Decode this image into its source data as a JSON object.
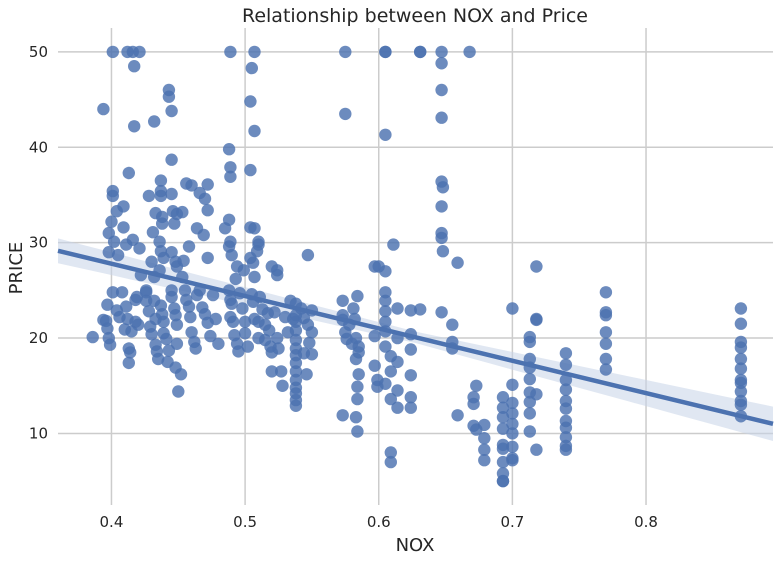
{
  "chart_data": {
    "type": "scatter",
    "title": "Relationship between NOX and Price",
    "xlabel": "NOX",
    "ylabel": "PRICE",
    "xlim": [
      0.36,
      0.895
    ],
    "ylim": [
      2.5,
      52.5
    ],
    "x_ticks": [
      "0.4",
      "0.5",
      "0.6",
      "0.7",
      "0.8"
    ],
    "y_ticks": [
      "10",
      "20",
      "30",
      "40",
      "50"
    ],
    "grid": true,
    "colors": {
      "points": "#4c72b0",
      "line": "#4c72b0",
      "band": "#c6d3e8",
      "grid": "#cccccc"
    },
    "regression": {
      "slope": -33.9,
      "intercept": 41.35,
      "x_range": [
        0.36,
        0.895
      ],
      "ci_half_width_start": 1.3,
      "ci_half_width_mid": 0.6,
      "ci_half_width_end": 1.8
    },
    "points": [
      [
        0.394,
        44.0
      ],
      [
        0.401,
        50.0
      ],
      [
        0.412,
        50.0
      ],
      [
        0.416,
        50.0
      ],
      [
        0.421,
        50.0
      ],
      [
        0.417,
        48.5
      ],
      [
        0.417,
        42.2
      ],
      [
        0.432,
        42.7
      ],
      [
        0.443,
        46.0
      ],
      [
        0.443,
        45.3
      ],
      [
        0.445,
        43.8
      ],
      [
        0.445,
        38.7
      ],
      [
        0.489,
        50.0
      ],
      [
        0.507,
        50.0
      ],
      [
        0.505,
        48.3
      ],
      [
        0.504,
        44.8
      ],
      [
        0.507,
        41.7
      ],
      [
        0.488,
        39.8
      ],
      [
        0.489,
        37.9
      ],
      [
        0.489,
        36.9
      ],
      [
        0.504,
        37.6
      ],
      [
        0.575,
        50.0
      ],
      [
        0.605,
        50.0
      ],
      [
        0.605,
        50.0
      ],
      [
        0.631,
        50.0
      ],
      [
        0.631,
        50.0
      ],
      [
        0.647,
        50.0
      ],
      [
        0.668,
        50.0
      ],
      [
        0.647,
        48.8
      ],
      [
        0.575,
        43.5
      ],
      [
        0.647,
        46.0
      ],
      [
        0.647,
        43.1
      ],
      [
        0.605,
        41.3
      ],
      [
        0.413,
        37.3
      ],
      [
        0.401,
        35.4
      ],
      [
        0.401,
        34.9
      ],
      [
        0.404,
        33.3
      ],
      [
        0.4,
        32.2
      ],
      [
        0.409,
        33.8
      ],
      [
        0.409,
        31.6
      ],
      [
        0.398,
        31.0
      ],
      [
        0.402,
        30.1
      ],
      [
        0.411,
        29.8
      ],
      [
        0.398,
        29.0
      ],
      [
        0.405,
        28.7
      ],
      [
        0.428,
        34.9
      ],
      [
        0.437,
        36.5
      ],
      [
        0.437,
        35.4
      ],
      [
        0.437,
        34.9
      ],
      [
        0.433,
        33.1
      ],
      [
        0.438,
        32.7
      ],
      [
        0.438,
        32.0
      ],
      [
        0.445,
        35.1
      ],
      [
        0.446,
        33.3
      ],
      [
        0.447,
        32.0
      ],
      [
        0.449,
        33.0
      ],
      [
        0.453,
        33.2
      ],
      [
        0.456,
        36.2
      ],
      [
        0.46,
        36.0
      ],
      [
        0.466,
        35.2
      ],
      [
        0.47,
        34.6
      ],
      [
        0.472,
        36.1
      ],
      [
        0.472,
        33.4
      ],
      [
        0.458,
        29.6
      ],
      [
        0.469,
        30.8
      ],
      [
        0.464,
        31.5
      ],
      [
        0.431,
        31.1
      ],
      [
        0.436,
        30.1
      ],
      [
        0.437,
        29.1
      ],
      [
        0.439,
        28.4
      ],
      [
        0.445,
        29.0
      ],
      [
        0.448,
        28.0
      ],
      [
        0.454,
        28.1
      ],
      [
        0.449,
        27.5
      ],
      [
        0.43,
        28.0
      ],
      [
        0.432,
        26.4
      ],
      [
        0.422,
        26.6
      ],
      [
        0.416,
        30.3
      ],
      [
        0.421,
        29.4
      ],
      [
        0.426,
        25.0
      ],
      [
        0.436,
        27.1
      ],
      [
        0.472,
        28.4
      ],
      [
        0.485,
        31.5
      ],
      [
        0.488,
        32.4
      ],
      [
        0.489,
        30.1
      ],
      [
        0.488,
        29.6
      ],
      [
        0.49,
        28.7
      ],
      [
        0.494,
        27.5
      ],
      [
        0.493,
        26.2
      ],
      [
        0.499,
        27.1
      ],
      [
        0.504,
        31.6
      ],
      [
        0.507,
        31.5
      ],
      [
        0.51,
        30.1
      ],
      [
        0.51,
        29.8
      ],
      [
        0.509,
        29.1
      ],
      [
        0.504,
        28.4
      ],
      [
        0.506,
        27.9
      ],
      [
        0.507,
        26.4
      ],
      [
        0.52,
        27.5
      ],
      [
        0.524,
        26.6
      ],
      [
        0.524,
        27.1
      ],
      [
        0.547,
        28.7
      ],
      [
        0.611,
        29.8
      ],
      [
        0.6,
        27.5
      ],
      [
        0.605,
        27.0
      ],
      [
        0.659,
        27.9
      ],
      [
        0.647,
        31.0
      ],
      [
        0.647,
        30.5
      ],
      [
        0.648,
        29.1
      ],
      [
        0.647,
        33.8
      ],
      [
        0.647,
        36.4
      ],
      [
        0.648,
        35.8
      ],
      [
        0.394,
        21.9
      ],
      [
        0.396,
        21.8
      ],
      [
        0.397,
        21.0
      ],
      [
        0.398,
        20.0
      ],
      [
        0.386,
        20.1
      ],
      [
        0.399,
        19.3
      ],
      [
        0.397,
        23.5
      ],
      [
        0.401,
        24.8
      ],
      [
        0.404,
        22.9
      ],
      [
        0.406,
        22.2
      ],
      [
        0.408,
        24.8
      ],
      [
        0.411,
        23.3
      ],
      [
        0.41,
        20.9
      ],
      [
        0.412,
        22.0
      ],
      [
        0.413,
        18.9
      ],
      [
        0.414,
        18.5
      ],
      [
        0.413,
        17.4
      ],
      [
        0.415,
        20.7
      ],
      [
        0.418,
        21.7
      ],
      [
        0.418,
        24.0
      ],
      [
        0.419,
        24.3
      ],
      [
        0.42,
        21.4
      ],
      [
        0.426,
        24.8
      ],
      [
        0.426,
        23.9
      ],
      [
        0.428,
        22.8
      ],
      [
        0.429,
        21.2
      ],
      [
        0.43,
        20.4
      ],
      [
        0.432,
        23.9
      ],
      [
        0.433,
        22.0
      ],
      [
        0.433,
        19.3
      ],
      [
        0.434,
        18.6
      ],
      [
        0.435,
        17.8
      ],
      [
        0.437,
        23.4
      ],
      [
        0.438,
        22.5
      ],
      [
        0.439,
        21.7
      ],
      [
        0.439,
        20.5
      ],
      [
        0.441,
        19.9
      ],
      [
        0.442,
        17.5
      ],
      [
        0.443,
        18.7
      ],
      [
        0.445,
        25.0
      ],
      [
        0.445,
        24.3
      ],
      [
        0.447,
        23.1
      ],
      [
        0.448,
        22.4
      ],
      [
        0.449,
        21.4
      ],
      [
        0.449,
        19.4
      ],
      [
        0.448,
        16.9
      ],
      [
        0.45,
        14.4
      ],
      [
        0.452,
        16.2
      ],
      [
        0.453,
        26.4
      ],
      [
        0.455,
        25.0
      ],
      [
        0.456,
        24.0
      ],
      [
        0.458,
        23.3
      ],
      [
        0.459,
        22.2
      ],
      [
        0.46,
        20.6
      ],
      [
        0.462,
        19.6
      ],
      [
        0.463,
        18.9
      ],
      [
        0.464,
        24.5
      ],
      [
        0.466,
        25.0
      ],
      [
        0.468,
        23.2
      ],
      [
        0.47,
        22.5
      ],
      [
        0.472,
        21.6
      ],
      [
        0.474,
        20.2
      ],
      [
        0.476,
        24.5
      ],
      [
        0.478,
        22.0
      ],
      [
        0.48,
        19.4
      ],
      [
        0.488,
        25.0
      ],
      [
        0.489,
        24.0
      ],
      [
        0.49,
        23.6
      ],
      [
        0.489,
        22.2
      ],
      [
        0.491,
        21.7
      ],
      [
        0.492,
        20.3
      ],
      [
        0.494,
        19.4
      ],
      [
        0.495,
        18.6
      ],
      [
        0.496,
        24.7
      ],
      [
        0.498,
        23.1
      ],
      [
        0.5,
        21.7
      ],
      [
        0.5,
        20.5
      ],
      [
        0.502,
        19.1
      ],
      [
        0.505,
        24.6
      ],
      [
        0.506,
        23.8
      ],
      [
        0.507,
        22.0
      ],
      [
        0.51,
        21.7
      ],
      [
        0.51,
        20.0
      ],
      [
        0.511,
        24.3
      ],
      [
        0.513,
        23.0
      ],
      [
        0.515,
        21.4
      ],
      [
        0.515,
        19.8
      ],
      [
        0.517,
        22.6
      ],
      [
        0.518,
        20.8
      ],
      [
        0.519,
        19.1
      ],
      [
        0.52,
        18.5
      ],
      [
        0.522,
        22.7
      ],
      [
        0.524,
        20.0
      ],
      [
        0.525,
        18.9
      ],
      [
        0.52,
        16.5
      ],
      [
        0.527,
        16.5
      ],
      [
        0.528,
        15.0
      ],
      [
        0.53,
        22.2
      ],
      [
        0.532,
        20.6
      ],
      [
        0.534,
        23.9
      ],
      [
        0.536,
        22.0
      ],
      [
        0.538,
        23.6
      ],
      [
        0.538,
        22.4
      ],
      [
        0.538,
        21.7
      ],
      [
        0.538,
        20.8
      ],
      [
        0.538,
        19.8
      ],
      [
        0.538,
        18.9
      ],
      [
        0.538,
        18.2
      ],
      [
        0.538,
        17.4
      ],
      [
        0.538,
        16.5
      ],
      [
        0.538,
        15.6
      ],
      [
        0.538,
        14.8
      ],
      [
        0.538,
        14.2
      ],
      [
        0.538,
        13.5
      ],
      [
        0.538,
        12.9
      ],
      [
        0.542,
        23.1
      ],
      [
        0.544,
        22.1
      ],
      [
        0.544,
        18.4
      ],
      [
        0.546,
        16.2
      ],
      [
        0.547,
        21.4
      ],
      [
        0.548,
        19.5
      ],
      [
        0.55,
        22.9
      ],
      [
        0.55,
        20.6
      ],
      [
        0.55,
        18.3
      ],
      [
        0.573,
        23.9
      ],
      [
        0.573,
        22.4
      ],
      [
        0.573,
        21.9
      ],
      [
        0.575,
        20.6
      ],
      [
        0.576,
        19.9
      ],
      [
        0.578,
        21.4
      ],
      [
        0.58,
        19.4
      ],
      [
        0.581,
        23.1
      ],
      [
        0.582,
        22.0
      ],
      [
        0.583,
        20.0
      ],
      [
        0.584,
        24.4
      ],
      [
        0.585,
        19.1
      ],
      [
        0.585,
        18.5
      ],
      [
        0.585,
        16.2
      ],
      [
        0.583,
        17.8
      ],
      [
        0.584,
        14.9
      ],
      [
        0.584,
        13.6
      ],
      [
        0.573,
        11.9
      ],
      [
        0.583,
        11.7
      ],
      [
        0.584,
        10.2
      ],
      [
        0.597,
        27.5
      ],
      [
        0.597,
        20.2
      ],
      [
        0.597,
        17.1
      ],
      [
        0.599,
        15.6
      ],
      [
        0.599,
        14.9
      ],
      [
        0.605,
        24.8
      ],
      [
        0.605,
        23.9
      ],
      [
        0.605,
        22.8
      ],
      [
        0.605,
        21.7
      ],
      [
        0.605,
        20.7
      ],
      [
        0.605,
        19.1
      ],
      [
        0.605,
        15.2
      ],
      [
        0.609,
        18.1
      ],
      [
        0.609,
        16.5
      ],
      [
        0.609,
        13.6
      ],
      [
        0.614,
        23.1
      ],
      [
        0.614,
        20.0
      ],
      [
        0.614,
        17.5
      ],
      [
        0.614,
        14.5
      ],
      [
        0.614,
        12.7
      ],
      [
        0.609,
        8.0
      ],
      [
        0.609,
        7.0
      ],
      [
        0.624,
        22.9
      ],
      [
        0.624,
        20.4
      ],
      [
        0.624,
        18.8
      ],
      [
        0.624,
        16.1
      ],
      [
        0.624,
        13.8
      ],
      [
        0.624,
        12.7
      ],
      [
        0.631,
        23.0
      ],
      [
        0.647,
        22.7
      ],
      [
        0.655,
        21.4
      ],
      [
        0.655,
        19.6
      ],
      [
        0.655,
        18.9
      ],
      [
        0.659,
        11.9
      ],
      [
        0.671,
        13.8
      ],
      [
        0.671,
        13.1
      ],
      [
        0.671,
        10.8
      ],
      [
        0.673,
        15.0
      ],
      [
        0.673,
        10.4
      ],
      [
        0.679,
        10.9
      ],
      [
        0.679,
        8.3
      ],
      [
        0.679,
        7.2
      ],
      [
        0.679,
        9.5
      ],
      [
        0.693,
        13.8
      ],
      [
        0.693,
        12.7
      ],
      [
        0.693,
        11.7
      ],
      [
        0.693,
        10.5
      ],
      [
        0.693,
        8.8
      ],
      [
        0.693,
        8.4
      ],
      [
        0.693,
        7.0
      ],
      [
        0.693,
        5.8
      ],
      [
        0.693,
        5.0
      ],
      [
        0.693,
        5.0
      ],
      [
        0.7,
        23.1
      ],
      [
        0.7,
        15.1
      ],
      [
        0.7,
        13.2
      ],
      [
        0.7,
        12.1
      ],
      [
        0.7,
        11.0
      ],
      [
        0.7,
        10.0
      ],
      [
        0.7,
        8.6
      ],
      [
        0.7,
        7.4
      ],
      [
        0.7,
        7.2
      ],
      [
        0.713,
        20.1
      ],
      [
        0.713,
        19.6
      ],
      [
        0.713,
        17.8
      ],
      [
        0.713,
        16.9
      ],
      [
        0.713,
        15.7
      ],
      [
        0.713,
        14.3
      ],
      [
        0.713,
        13.3
      ],
      [
        0.713,
        12.1
      ],
      [
        0.713,
        10.2
      ],
      [
        0.718,
        27.5
      ],
      [
        0.718,
        22.0
      ],
      [
        0.718,
        21.9
      ],
      [
        0.718,
        14.1
      ],
      [
        0.718,
        8.3
      ],
      [
        0.74,
        18.4
      ],
      [
        0.74,
        17.2
      ],
      [
        0.74,
        15.6
      ],
      [
        0.74,
        14.6
      ],
      [
        0.74,
        13.4
      ],
      [
        0.74,
        12.6
      ],
      [
        0.74,
        11.3
      ],
      [
        0.74,
        10.6
      ],
      [
        0.74,
        9.6
      ],
      [
        0.74,
        8.7
      ],
      [
        0.74,
        8.3
      ],
      [
        0.77,
        24.8
      ],
      [
        0.77,
        22.7
      ],
      [
        0.77,
        22.4
      ],
      [
        0.77,
        20.6
      ],
      [
        0.77,
        19.4
      ],
      [
        0.77,
        17.8
      ],
      [
        0.77,
        16.7
      ],
      [
        0.871,
        23.1
      ],
      [
        0.871,
        21.5
      ],
      [
        0.871,
        19.6
      ],
      [
        0.871,
        19.0
      ],
      [
        0.871,
        17.8
      ],
      [
        0.871,
        16.8
      ],
      [
        0.871,
        15.6
      ],
      [
        0.871,
        15.3
      ],
      [
        0.871,
        14.4
      ],
      [
        0.871,
        13.4
      ],
      [
        0.871,
        13.0
      ],
      [
        0.871,
        11.8
      ]
    ]
  }
}
